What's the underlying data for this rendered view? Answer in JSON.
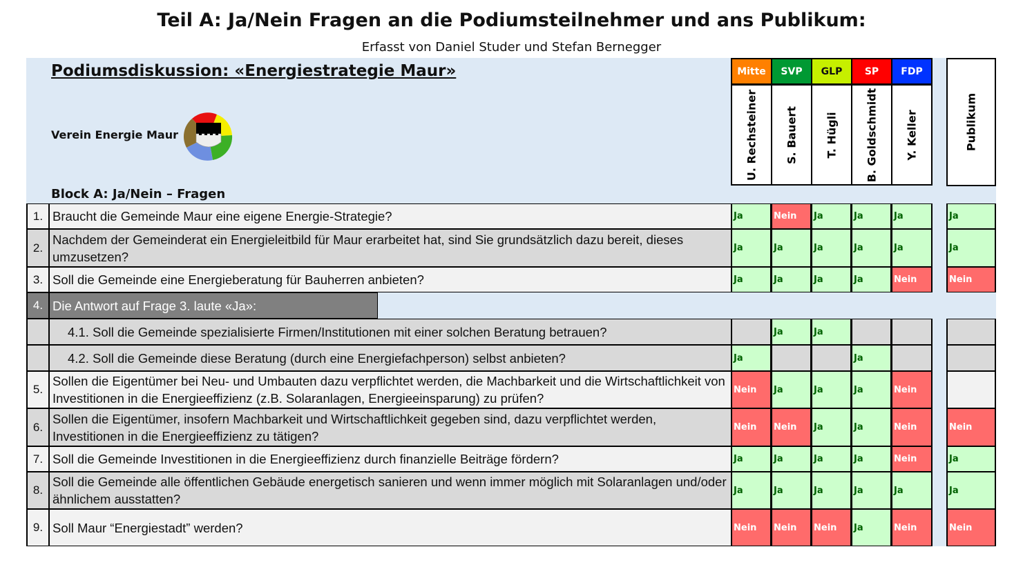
{
  "title": "Teil A: Ja/Nein Fragen an die Podiumsteilnehmer und ans Publikum:",
  "subtitle": "Erfasst von Daniel Studer und Stefan Bernegger",
  "podium_title": "Podiumsdiskussion: «Energiestrategie Maur»",
  "verein": "Verein Energie Maur",
  "block_title": "Block A: Ja/Nein – Fragen",
  "parties": [
    {
      "label": "Mitte",
      "name": "U. Rechsteiner",
      "color": "#ff8000",
      "text": "#ffffff"
    },
    {
      "label": "SVP",
      "name": "S. Bauert",
      "color": "#009933",
      "text": "#ffffff"
    },
    {
      "label": "GLP",
      "name": "T. Hügli",
      "color": "#c6ef00",
      "text": "#111111"
    },
    {
      "label": "SP",
      "name": "B. Goldschmidt",
      "color": "#ff0000",
      "text": "#ffffff"
    },
    {
      "label": "FDP",
      "name": "Y. Keller",
      "color": "#0033ff",
      "text": "#ffffff"
    }
  ],
  "publikum_label": "Publikum",
  "questions": [
    {
      "num": "1.",
      "text": "Braucht die Gemeinde Maur eine eigene Energie-Strategie?",
      "answers": [
        "Ja",
        "Nein",
        "Ja",
        "Ja",
        "Ja"
      ],
      "publikum": "Ja"
    },
    {
      "num": "2.",
      "text": "Nachdem der Gemeinderat ein Energieleitbild für Maur erarbeitet hat, sind Sie grundsätzlich dazu bereit, dieses umzusetzen?",
      "answers": [
        "Ja",
        "Ja",
        "Ja",
        "Ja",
        "Ja"
      ],
      "publikum": "Ja"
    },
    {
      "num": "3.",
      "text": "Soll die Gemeinde eine Energieberatung für Bauherren anbieten?",
      "answers": [
        "Ja",
        "Ja",
        "Ja",
        "Ja",
        "Nein"
      ],
      "publikum": "Nein"
    },
    {
      "num": "4.",
      "text": "Die Antwort auf Frage 3. laute «Ja»:",
      "answers": null,
      "publikum": null
    },
    {
      "num": "",
      "text": "4.1. Soll die Gemeinde spezialisierte Firmen/Institutionen mit einer solchen Beratung betrauen?",
      "answers": [
        null,
        "Ja",
        "Ja",
        null,
        null
      ],
      "publikum": null
    },
    {
      "num": "",
      "text": "4.2. Soll die Gemeinde diese Beratung (durch eine Energiefachperson) selbst anbieten?",
      "answers": [
        "Ja",
        null,
        null,
        "Ja",
        null
      ],
      "publikum": null
    },
    {
      "num": "5.",
      "text": "Sollen die Eigentümer bei Neu- und Umbauten dazu verpflichtet werden, die Machbarkeit und die Wirtschaftlichkeit von Investitionen in die Energieeffizienz (z.B. Solaranlagen, Energieeinsparung) zu prüfen?",
      "answers": [
        "Nein",
        "Ja",
        "Ja",
        "Ja",
        "Nein"
      ],
      "publikum": null
    },
    {
      "num": "6.",
      "text": "Sollen die Eigentümer, insofern Machbarkeit und Wirtschaftlichkeit gegeben sind, dazu verpflichtet werden, Investitionen in die Energieeffizienz zu tätigen?",
      "answers": [
        "Nein",
        "Nein",
        "Ja",
        "Ja",
        "Nein"
      ],
      "publikum": "Nein"
    },
    {
      "num": "7.",
      "text": "Soll die Gemeinde Investitionen in die Energieeffizienz durch finanzielle Beiträge fördern?",
      "answers": [
        "Ja",
        "Ja",
        "Ja",
        "Ja",
        "Nein"
      ],
      "publikum": "Ja"
    },
    {
      "num": "8.",
      "text": "Soll die Gemeinde alle öffentlichen Gebäude energetisch sanieren und wenn immer möglich mit Solaranlagen und/oder ähnlichem ausstatten?",
      "answers": [
        "Ja",
        "Ja",
        "Ja",
        "Ja",
        "Ja"
      ],
      "publikum": "Ja"
    },
    {
      "num": "9.",
      "text": "Soll Maur “Energiestadt” werden?",
      "answers": [
        "Nein",
        "Nein",
        "Nein",
        "Ja",
        "Nein"
      ],
      "publikum": "Nein"
    }
  ]
}
